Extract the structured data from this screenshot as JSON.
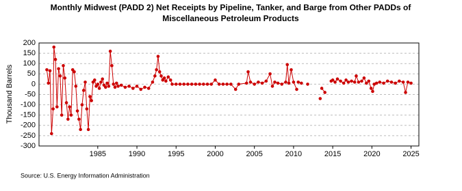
{
  "chart_data": {
    "type": "line",
    "title": "Monthly Midwest (PADD 2) Net Receipts by Pipeline, Tanker, and Barge from Other PADDs of",
    "subtitle": "Miscellaneous Petroleum Products",
    "y_label": "Thousand Barrels",
    "source": "Source: U.S. Energy Information Administration",
    "color": "#cc0000",
    "grid": true,
    "xlim": [
      1977.5,
      2026
    ],
    "xticks": [
      1985,
      1990,
      1995,
      2000,
      2005,
      2010,
      2015,
      2020,
      2025
    ],
    "ylim": [
      -300,
      200
    ],
    "yticks": [
      -300,
      -250,
      -200,
      -150,
      -100,
      -50,
      0,
      50,
      100,
      150,
      200
    ],
    "x": [
      1978.5,
      1978.7,
      1978.9,
      1979.1,
      1979.3,
      1979.4,
      1979.6,
      1979.8,
      1980.0,
      1980.2,
      1980.4,
      1980.6,
      1980.8,
      1981.0,
      1981.2,
      1981.4,
      1981.6,
      1981.8,
      1982.0,
      1982.2,
      1982.4,
      1982.6,
      1982.8,
      1983.0,
      1983.2,
      1983.4,
      1983.6,
      1983.8,
      1984.0,
      1984.2,
      1984.4,
      1984.6,
      1984.8,
      1985.0,
      1985.2,
      1985.4,
      1985.6,
      1985.8,
      1986.0,
      1986.2,
      1986.4,
      1986.6,
      1986.8,
      1987.0,
      1987.2,
      1987.4,
      1987.6,
      1988.0,
      1988.5,
      1989.0,
      1989.5,
      1990.0,
      1990.5,
      1991.0,
      1991.5,
      1992.0,
      1992.3,
      1992.5,
      1992.7,
      1992.9,
      1993.1,
      1993.3,
      1993.5,
      1993.7,
      1994.0,
      1994.3,
      1994.5,
      1995.0,
      1995.5,
      1996.0,
      1996.5,
      1997.0,
      1997.5,
      1998.0,
      1998.5,
      1999.0,
      1999.5,
      2000.0,
      2000.5,
      2001.0,
      2001.5,
      2002.0,
      2002.6,
      2003.0,
      2004.0,
      2004.2,
      2004.5,
      2005.0,
      2005.5,
      2006.0,
      2006.5,
      2007.0,
      2007.3,
      2007.6,
      2008.0,
      2008.5,
      2009.0,
      2009.2,
      2009.4,
      2009.7,
      2010.0,
      2010.4,
      2010.5,
      2010.6,
      2011.0,
      2011.4,
      2011.8,
      2012.5,
      2013.4,
      2013.5,
      2013.6,
      2014.0,
      2014.4,
      2014.8,
      2015.0,
      2015.3,
      2015.6,
      2016.0,
      2016.4,
      2016.7,
      2017.0,
      2017.4,
      2017.8,
      2018.0,
      2018.3,
      2018.7,
      2019.0,
      2019.3,
      2019.6,
      2019.9,
      2020.1,
      2020.3,
      2020.6,
      2021.0,
      2021.5,
      2022.0,
      2022.5,
      2023.0,
      2023.5,
      2024.0,
      2024.3,
      2024.6,
      2025.0
    ],
    "values": [
      70,
      5,
      65,
      -240,
      -120,
      180,
      120,
      -110,
      75,
      40,
      -150,
      90,
      30,
      -90,
      -170,
      -110,
      -150,
      70,
      60,
      -10,
      -130,
      -170,
      -220,
      -100,
      -30,
      10,
      -120,
      -220,
      -60,
      -80,
      10,
      20,
      -10,
      0,
      -20,
      10,
      25,
      -5,
      -15,
      5,
      -10,
      160,
      90,
      0,
      -15,
      5,
      -10,
      -5,
      -15,
      -10,
      -20,
      -10,
      -25,
      -15,
      -20,
      10,
      40,
      70,
      135,
      60,
      40,
      20,
      30,
      15,
      35,
      20,
      0,
      0,
      0,
      0,
      0,
      0,
      0,
      0,
      0,
      0,
      0,
      20,
      0,
      0,
      0,
      0,
      -25,
      0,
      5,
      60,
      10,
      0,
      10,
      5,
      15,
      50,
      -10,
      10,
      5,
      0,
      10,
      95,
      5,
      70,
      10,
      -25,
      null,
      10,
      5,
      null,
      0,
      null,
      -70,
      null,
      -20,
      -40,
      null,
      15,
      20,
      10,
      25,
      15,
      5,
      20,
      10,
      15,
      10,
      40,
      10,
      15,
      30,
      5,
      15,
      -20,
      -35,
      0,
      5,
      10,
      5,
      15,
      10,
      5,
      15,
      10,
      -40,
      10,
      5
    ]
  }
}
